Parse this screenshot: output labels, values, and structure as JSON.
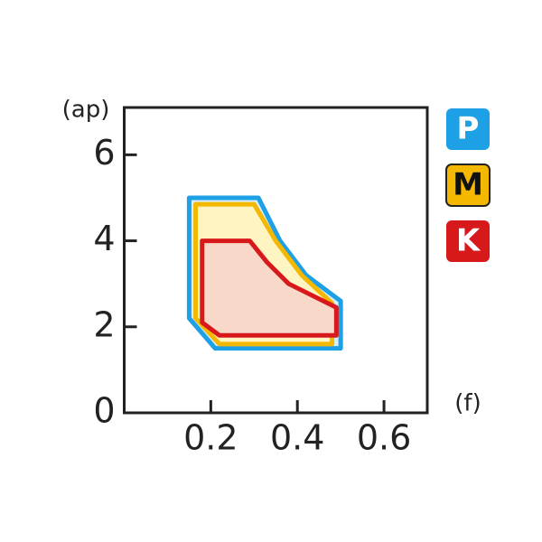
{
  "chart_data": {
    "type": "area",
    "y_label": "(ap)",
    "x_label": "(f)",
    "xlim": [
      0,
      0.7
    ],
    "ylim": [
      0,
      7.1
    ],
    "xticks": [
      0.2,
      0.4,
      0.6
    ],
    "yticks": [
      0,
      2,
      4,
      6
    ],
    "series": [
      {
        "name": "P",
        "color": "#1ea0e6",
        "fill": "#d6eefa",
        "label_color": "#ffffff",
        "x": [
          0.15,
          0.31,
          0.36,
          0.42,
          0.5,
          0.5,
          0.21,
          0.15
        ],
        "y": [
          5.0,
          5.0,
          4.0,
          3.2,
          2.6,
          1.5,
          1.5,
          2.2
        ]
      },
      {
        "name": "M",
        "color": "#f5b800",
        "fill": "#fff5c2",
        "label_color": "#111111",
        "x": [
          0.165,
          0.3,
          0.35,
          0.41,
          0.48,
          0.48,
          0.22,
          0.165
        ],
        "y": [
          4.85,
          4.85,
          4.0,
          3.2,
          2.55,
          1.6,
          1.6,
          2.2
        ]
      },
      {
        "name": "K",
        "color": "#d7191c",
        "fill": "#f8d8c8",
        "label_color": "#ffffff",
        "x": [
          0.18,
          0.29,
          0.33,
          0.38,
          0.49,
          0.49,
          0.22,
          0.18
        ],
        "y": [
          4.0,
          4.0,
          3.5,
          3.0,
          2.45,
          1.8,
          1.8,
          2.1
        ]
      }
    ]
  }
}
